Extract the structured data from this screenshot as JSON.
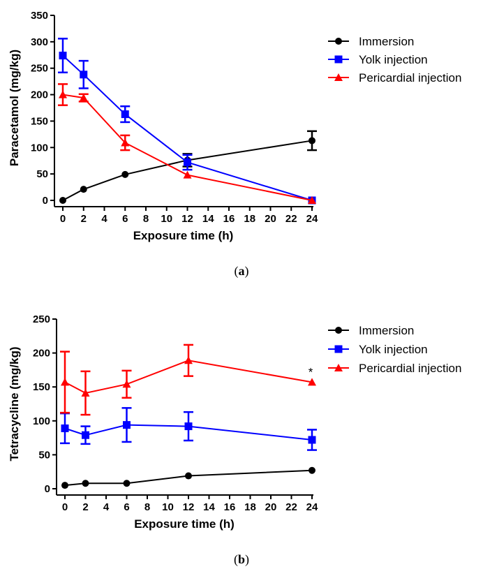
{
  "chart_data": [
    {
      "type": "line",
      "panel_label": "a",
      "xlabel": "Exposure time (h)",
      "ylabel": "Paracetamol (mg/kg)",
      "xlim": [
        0,
        24
      ],
      "ylim": [
        0,
        350
      ],
      "x_ticks": [
        0,
        2,
        4,
        6,
        8,
        10,
        12,
        14,
        16,
        18,
        20,
        22,
        24
      ],
      "y_ticks": [
        0,
        50,
        100,
        150,
        200,
        250,
        300,
        350
      ],
      "grid": false,
      "legend_position": "right",
      "series": [
        {
          "name": "Immersion",
          "color": "#000000",
          "marker": "circle",
          "x": [
            0,
            2,
            6,
            12,
            24
          ],
          "y": [
            0,
            21,
            49,
            76,
            113
          ],
          "err": [
            0,
            0,
            0,
            12,
            18
          ]
        },
        {
          "name": "Yolk injection",
          "color": "#0000ff",
          "marker": "square",
          "x": [
            0,
            2,
            6,
            12,
            24
          ],
          "y": [
            274,
            238,
            163,
            72,
            0
          ],
          "err": [
            32,
            26,
            15,
            14,
            0
          ]
        },
        {
          "name": "Pericardial injection",
          "color": "#ff0000",
          "marker": "triangle",
          "x": [
            0,
            2,
            6,
            12,
            24
          ],
          "y": [
            200,
            194,
            109,
            48,
            0
          ],
          "err": [
            20,
            7,
            14,
            0,
            0
          ]
        }
      ],
      "annotations": []
    },
    {
      "type": "line",
      "panel_label": "b",
      "xlabel": "Exposure time (h)",
      "ylabel": "Tetracycline (mg/kg)",
      "xlim": [
        0,
        24
      ],
      "ylim": [
        0,
        250
      ],
      "x_ticks": [
        0,
        2,
        4,
        6,
        8,
        10,
        12,
        14,
        16,
        18,
        20,
        22,
        24
      ],
      "y_ticks": [
        0,
        50,
        100,
        150,
        200,
        250
      ],
      "grid": false,
      "legend_position": "right",
      "series": [
        {
          "name": "Immersion",
          "color": "#000000",
          "marker": "circle",
          "x": [
            0,
            2,
            6,
            12,
            24
          ],
          "y": [
            5,
            8,
            8,
            19,
            27
          ],
          "err": [
            0,
            0,
            0,
            0,
            0
          ]
        },
        {
          "name": "Yolk injection",
          "color": "#0000ff",
          "marker": "square",
          "x": [
            0,
            2,
            6,
            12,
            24
          ],
          "y": [
            89,
            79,
            94,
            92,
            72
          ],
          "err": [
            22,
            13,
            25,
            21,
            15
          ]
        },
        {
          "name": "Pericardial injection",
          "color": "#ff0000",
          "marker": "triangle",
          "x": [
            0,
            2,
            6,
            12,
            24
          ],
          "y": [
            157,
            141,
            154,
            189,
            157
          ],
          "err": [
            45,
            32,
            20,
            23,
            0
          ]
        }
      ],
      "annotations": [
        {
          "text": "*",
          "x": 24,
          "y": 157
        }
      ]
    }
  ]
}
